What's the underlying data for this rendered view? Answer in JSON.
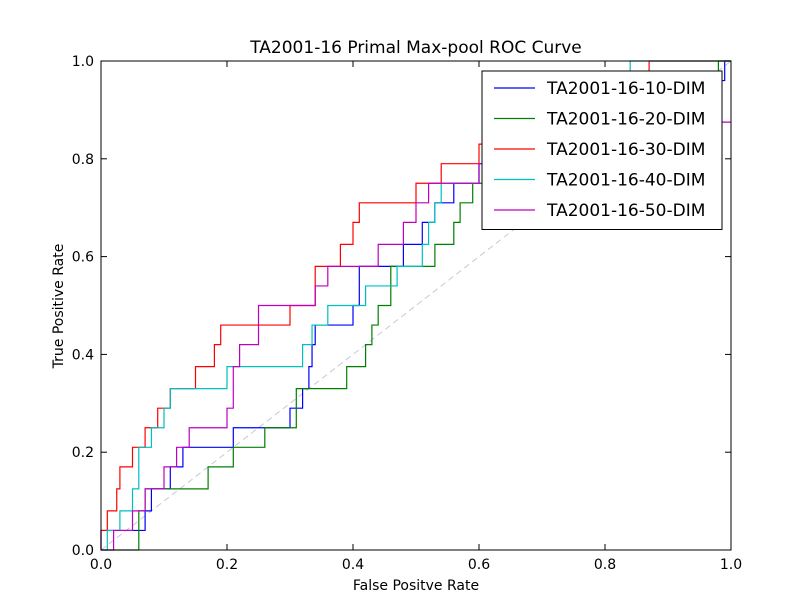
{
  "chart_data": {
    "type": "line",
    "title": "TA2001-16 Primal Max-pool ROC Curve",
    "xlabel": "False Positve Rate",
    "ylabel": "True Positive Rate",
    "xlim": [
      0.0,
      1.0
    ],
    "ylim": [
      0.0,
      1.0
    ],
    "xticks": [
      "0.0",
      "0.2",
      "0.4",
      "0.6",
      "0.8",
      "1.0"
    ],
    "yticks": [
      "0.0",
      "0.2",
      "0.4",
      "0.6",
      "0.8",
      "1.0"
    ],
    "grid": false,
    "legend_position": "top-right",
    "diagonal": {
      "x": [
        0,
        1
      ],
      "y": [
        0,
        1
      ],
      "color": "#c8c8d8",
      "style": "dashed"
    },
    "series": [
      {
        "name": "TA2001-16-10-DIM",
        "color": "#0000ff",
        "x": [
          0,
          0,
          0.01,
          0.01,
          0.05,
          0.05,
          0.07,
          0.07,
          0.08,
          0.08,
          0.09,
          0.09,
          0.11,
          0.11,
          0.13,
          0.13,
          0.15,
          0.15,
          0.21,
          0.21,
          0.3,
          0.3,
          0.32,
          0.32,
          0.33,
          0.33,
          0.335,
          0.335,
          0.34,
          0.34,
          0.4,
          0.4,
          0.41,
          0.41,
          0.48,
          0.48,
          0.51,
          0.51,
          0.53,
          0.53,
          0.56,
          0.56,
          0.6,
          0.6,
          0.62,
          0.62,
          0.63,
          0.63,
          0.99,
          0.99,
          1.0
        ],
        "y": [
          0,
          0.04,
          0.04,
          0.04,
          0.04,
          0.04,
          0.04,
          0.08,
          0.08,
          0.125,
          0.125,
          0.125,
          0.125,
          0.17,
          0.17,
          0.21,
          0.21,
          0.21,
          0.21,
          0.25,
          0.25,
          0.29,
          0.29,
          0.33,
          0.33,
          0.375,
          0.375,
          0.42,
          0.42,
          0.46,
          0.46,
          0.5,
          0.5,
          0.58,
          0.58,
          0.625,
          0.625,
          0.67,
          0.67,
          0.71,
          0.71,
          0.75,
          0.75,
          0.79,
          0.79,
          0.83,
          0.83,
          0.96,
          0.96,
          1.0,
          1.0
        ]
      },
      {
        "name": "TA2001-16-20-DIM",
        "color": "#008000",
        "x": [
          0,
          0.06,
          0.06,
          0.07,
          0.07,
          0.08,
          0.08,
          0.17,
          0.17,
          0.21,
          0.21,
          0.26,
          0.26,
          0.31,
          0.31,
          0.39,
          0.39,
          0.42,
          0.42,
          0.43,
          0.43,
          0.44,
          0.44,
          0.46,
          0.46,
          0.53,
          0.53,
          0.56,
          0.56,
          0.57,
          0.57,
          0.59,
          0.59,
          0.98,
          0.98,
          1.0
        ],
        "y": [
          0,
          0,
          0.08,
          0.08,
          0.125,
          0.125,
          0.125,
          0.125,
          0.17,
          0.17,
          0.21,
          0.21,
          0.25,
          0.25,
          0.33,
          0.33,
          0.375,
          0.375,
          0.42,
          0.42,
          0.46,
          0.46,
          0.5,
          0.5,
          0.58,
          0.58,
          0.625,
          0.625,
          0.67,
          0.67,
          0.71,
          0.71,
          0.75,
          0.75,
          1.0,
          1.0
        ]
      },
      {
        "name": "TA2001-16-30-DIM",
        "color": "#ff0000",
        "x": [
          0,
          0,
          0.01,
          0.01,
          0.025,
          0.025,
          0.03,
          0.03,
          0.05,
          0.05,
          0.07,
          0.07,
          0.09,
          0.09,
          0.11,
          0.11,
          0.15,
          0.15,
          0.18,
          0.18,
          0.19,
          0.19,
          0.3,
          0.3,
          0.34,
          0.34,
          0.38,
          0.38,
          0.4,
          0.4,
          0.41,
          0.41,
          0.5,
          0.5,
          0.54,
          0.54,
          0.6,
          0.6,
          0.87,
          0.87,
          1.0
        ],
        "y": [
          0,
          0.04,
          0.04,
          0.08,
          0.08,
          0.125,
          0.125,
          0.17,
          0.17,
          0.21,
          0.21,
          0.25,
          0.25,
          0.29,
          0.29,
          0.33,
          0.33,
          0.375,
          0.375,
          0.42,
          0.42,
          0.46,
          0.46,
          0.5,
          0.5,
          0.58,
          0.58,
          0.625,
          0.625,
          0.67,
          0.67,
          0.71,
          0.71,
          0.75,
          0.75,
          0.79,
          0.79,
          0.83,
          0.83,
          1.0,
          1.0
        ]
      },
      {
        "name": "TA2001-16-40-DIM",
        "color": "#00bfbf",
        "x": [
          0,
          0.01,
          0.01,
          0.03,
          0.03,
          0.04,
          0.04,
          0.05,
          0.05,
          0.06,
          0.06,
          0.08,
          0.08,
          0.1,
          0.1,
          0.11,
          0.11,
          0.12,
          0.12,
          0.2,
          0.2,
          0.32,
          0.32,
          0.335,
          0.335,
          0.36,
          0.36,
          0.42,
          0.42,
          0.47,
          0.47,
          0.51,
          0.51,
          0.52,
          0.52,
          0.53,
          0.53,
          0.54,
          0.54,
          0.6,
          0.6,
          0.84,
          0.84,
          1.0
        ],
        "y": [
          0,
          0,
          0.04,
          0.04,
          0.08,
          0.08,
          0.08,
          0.08,
          0.125,
          0.125,
          0.21,
          0.21,
          0.25,
          0.25,
          0.29,
          0.29,
          0.33,
          0.33,
          0.33,
          0.33,
          0.375,
          0.375,
          0.42,
          0.42,
          0.46,
          0.46,
          0.5,
          0.5,
          0.54,
          0.54,
          0.58,
          0.58,
          0.625,
          0.625,
          0.67,
          0.67,
          0.71,
          0.71,
          0.75,
          0.75,
          0.79,
          0.79,
          1.0,
          1.0
        ]
      },
      {
        "name": "TA2001-16-50-DIM",
        "color": "#bf00bf",
        "x": [
          0,
          0.02,
          0.02,
          0.05,
          0.05,
          0.07,
          0.07,
          0.1,
          0.1,
          0.12,
          0.12,
          0.14,
          0.14,
          0.2,
          0.2,
          0.21,
          0.21,
          0.22,
          0.22,
          0.25,
          0.25,
          0.29,
          0.29,
          0.34,
          0.34,
          0.36,
          0.36,
          0.44,
          0.44,
          0.48,
          0.48,
          0.5,
          0.5,
          0.52,
          0.52,
          0.53,
          0.53,
          0.6,
          0.6,
          0.63,
          0.63,
          0.64,
          0.64,
          0.65,
          0.65,
          1.0
        ],
        "y": [
          0,
          0,
          0.04,
          0.04,
          0.08,
          0.08,
          0.125,
          0.125,
          0.17,
          0.17,
          0.21,
          0.21,
          0.25,
          0.25,
          0.29,
          0.29,
          0.375,
          0.375,
          0.42,
          0.42,
          0.5,
          0.5,
          0.5,
          0.5,
          0.54,
          0.54,
          0.58,
          0.58,
          0.625,
          0.625,
          0.67,
          0.67,
          0.71,
          0.71,
          0.75,
          0.75,
          0.75,
          0.75,
          0.79,
          0.79,
          0.83,
          0.83,
          0.875,
          0.875,
          0.875,
          0.875
        ]
      }
    ]
  }
}
